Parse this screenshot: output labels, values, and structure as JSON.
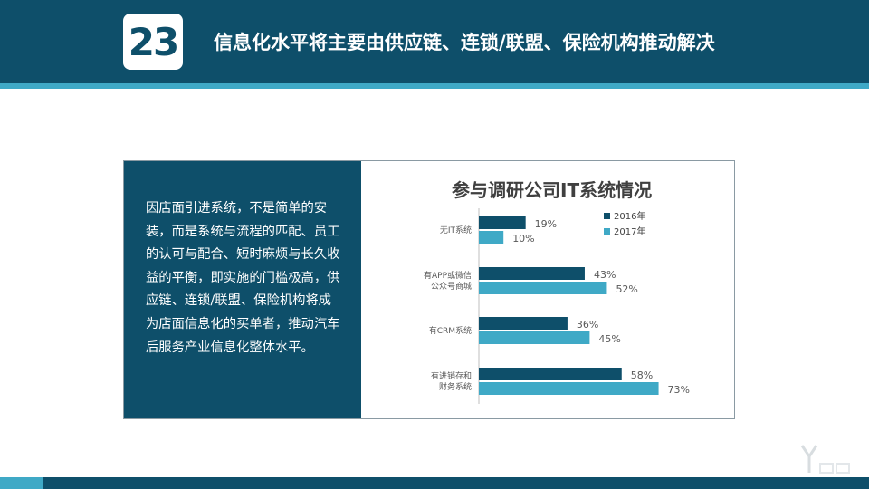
{
  "header": {
    "number": "23",
    "title": "信息化水平将主要由供应链、连锁/联盟、保险机构推动解决"
  },
  "body_text": "因店面引进系统，不是简单的安装，而是系统与流程的匹配、员工的认可与配合、短时麻烦与长久收益的平衡，即实施的门槛极高，供应链、连锁/联盟、保险机构将成为店面信息化的买单者，推动汽车后服务产业信息化整体水平。",
  "colors": {
    "header_bg": "#0e4f6a",
    "stripe": "#3fa9c6",
    "series_2016": "#0e4f6a",
    "series_2017": "#3fa9c6"
  },
  "chart_data": {
    "type": "bar",
    "orientation": "horizontal",
    "title": "参与调研公司IT系统情况",
    "categories": [
      [
        "无IT系统"
      ],
      [
        "有APP或微信",
        "公众号商城"
      ],
      [
        "有CRM系统"
      ],
      [
        "有进销存和",
        "财务系统"
      ]
    ],
    "series": [
      {
        "name": "2016年",
        "values": [
          19,
          43,
          36,
          58
        ],
        "labels": [
          "19%",
          "43%",
          "36%",
          "58%"
        ],
        "color": "#0e4f6a"
      },
      {
        "name": "2017年",
        "values": [
          10,
          52,
          45,
          73
        ],
        "labels": [
          "10%",
          "52%",
          "45%",
          "73%"
        ],
        "color": "#3fa9c6"
      }
    ],
    "legend_position": "top-right",
    "grid": false,
    "unit": "%"
  }
}
